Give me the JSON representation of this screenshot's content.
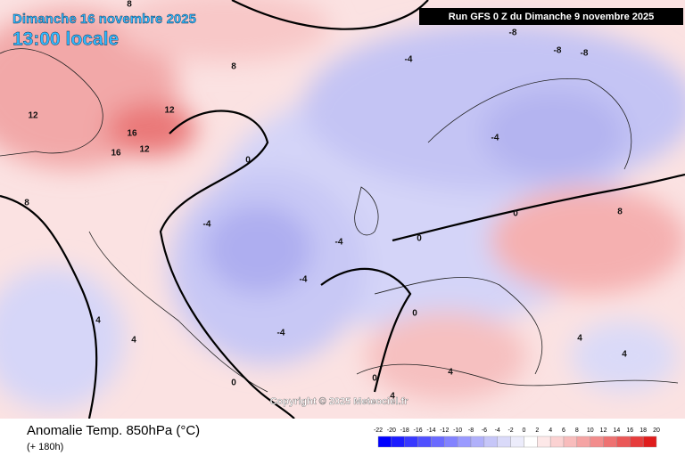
{
  "header": {
    "date": "Dimanche 16 novembre 2025",
    "time": "13:00 locale",
    "run": "Run GFS 0 Z du Dimanche 9 novembre 2025"
  },
  "copyright": "Copyright © 2025 Meteociel.fr",
  "footer": {
    "title": "Anomalie Temp. 850hPa (°C)",
    "lead": "(+ 180h)"
  },
  "legend": {
    "ticks": [
      -22,
      -20,
      -18,
      -16,
      -14,
      -12,
      -10,
      -8,
      -6,
      -4,
      -2,
      0,
      2,
      4,
      6,
      8,
      10,
      12,
      14,
      16,
      18,
      20
    ],
    "colors": [
      "#0000ff",
      "#1c1cff",
      "#3838ff",
      "#5050ff",
      "#6a6aff",
      "#8282ff",
      "#9a9aff",
      "#b0b0fa",
      "#c6c6f8",
      "#dadaf9",
      "#ececfb",
      "#ffffff",
      "#fde8e8",
      "#fbd2d2",
      "#f8bcbc",
      "#f5a4a4",
      "#f28c8c",
      "#ee7272",
      "#ea5858",
      "#e63c3c",
      "#e01c1c"
    ]
  },
  "contour_labels": [
    -8,
    -8,
    -8,
    -4,
    -4,
    -4,
    -4,
    -4,
    -4,
    0,
    0,
    0,
    0,
    0,
    0,
    4,
    4,
    4,
    4,
    4,
    4,
    8,
    8,
    8,
    8,
    12,
    12,
    12,
    16,
    16
  ]
}
